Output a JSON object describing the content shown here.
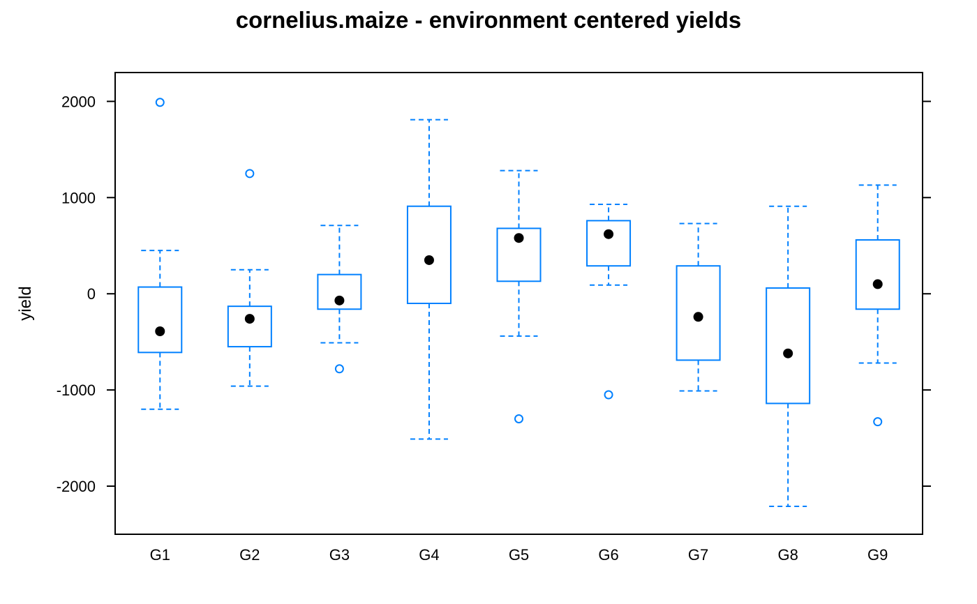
{
  "chart_data": {
    "type": "boxplot",
    "title": "cornelius.maize - environment centered yields",
    "xlabel": "",
    "ylabel": "yield",
    "ylim": [
      -2500,
      2300
    ],
    "yticks": [
      -2000,
      -1000,
      0,
      1000,
      2000
    ],
    "ytick_labels": [
      "-2000",
      "-1000",
      "0",
      "1000",
      "2000"
    ],
    "categories": [
      "G1",
      "G2",
      "G3",
      "G4",
      "G5",
      "G6",
      "G7",
      "G8",
      "G9"
    ],
    "boxes": [
      {
        "name": "G1",
        "whisker_low": -1200,
        "q1": -610,
        "median": -390,
        "q3": 70,
        "whisker_high": 450,
        "outliers": [
          1990
        ]
      },
      {
        "name": "G2",
        "whisker_low": -960,
        "q1": -550,
        "median": -260,
        "q3": -130,
        "whisker_high": 250,
        "outliers": [
          1250
        ]
      },
      {
        "name": "G3",
        "whisker_low": -510,
        "q1": -160,
        "median": -70,
        "q3": 200,
        "whisker_high": 710,
        "outliers": [
          -780
        ]
      },
      {
        "name": "G4",
        "whisker_low": -1510,
        "q1": -100,
        "median": 350,
        "q3": 910,
        "whisker_high": 1810,
        "outliers": []
      },
      {
        "name": "G5",
        "whisker_low": -440,
        "q1": 130,
        "median": 580,
        "q3": 680,
        "whisker_high": 1280,
        "outliers": [
          -1300
        ]
      },
      {
        "name": "G6",
        "whisker_low": 90,
        "q1": 290,
        "median": 620,
        "q3": 760,
        "whisker_high": 930,
        "outliers": [
          -1050
        ]
      },
      {
        "name": "G7",
        "whisker_low": -1010,
        "q1": -690,
        "median": -240,
        "q3": 290,
        "whisker_high": 730,
        "outliers": []
      },
      {
        "name": "G8",
        "whisker_low": -2210,
        "q1": -1140,
        "median": -620,
        "q3": 60,
        "whisker_high": 910,
        "outliers": []
      },
      {
        "name": "G9",
        "whisker_low": -720,
        "q1": -160,
        "median": 100,
        "q3": 560,
        "whisker_high": 1130,
        "outliers": [
          -1330
        ]
      }
    ],
    "grid": false,
    "colors": {
      "box": "#0080ff",
      "median": "#000000",
      "frame": "#000000"
    }
  }
}
